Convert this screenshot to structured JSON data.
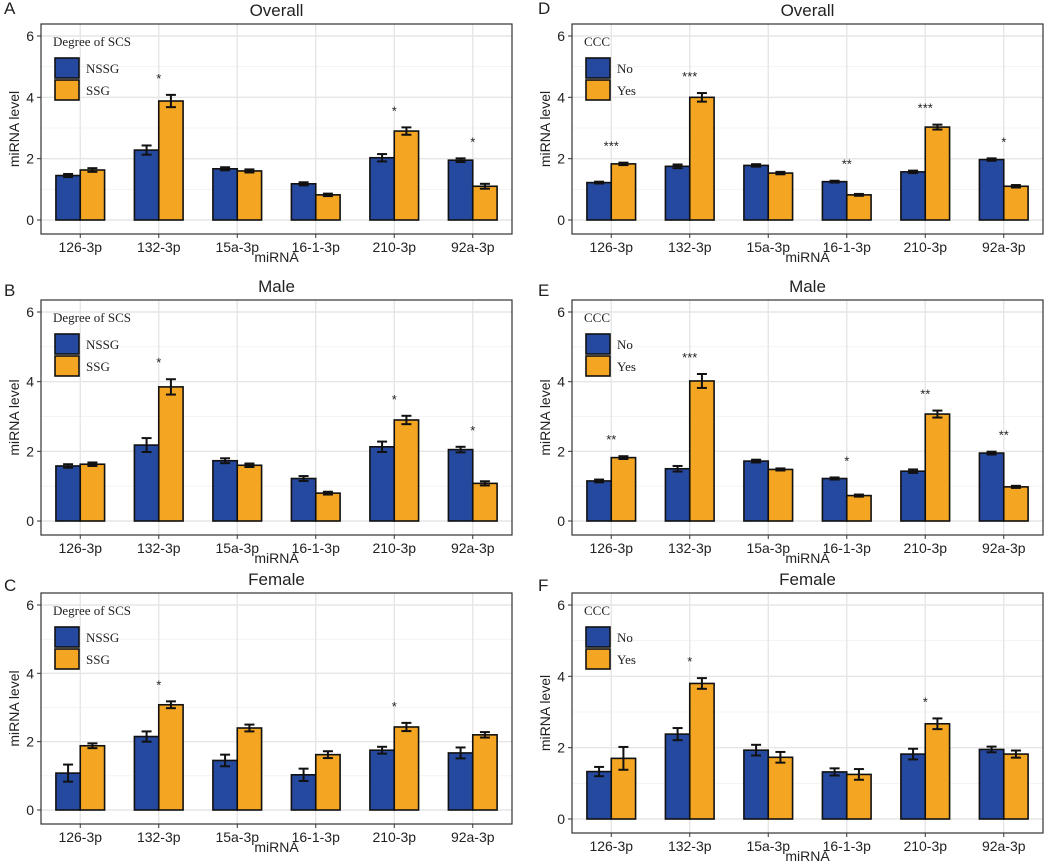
{
  "figure": {
    "panel_letters": [
      "A",
      "B",
      "C",
      "D",
      "E",
      "F"
    ]
  },
  "chart_data": [
    {
      "panel": "A",
      "type": "bar",
      "title": "Overall",
      "xlabel": "miRNA",
      "ylabel": "miRNA level",
      "ylim": [
        0,
        6
      ],
      "yticks": [
        0,
        2,
        4,
        6
      ],
      "grid": true,
      "legend_title": "Degree of SCS",
      "legend_position": "top-left",
      "categories": [
        "126-3p",
        "132-3p",
        "15a-3p",
        "16-1-3p",
        "210-3p",
        "92a-3p"
      ],
      "series": [
        {
          "name": "NSSG",
          "color": "#2649a0",
          "values": [
            1.45,
            2.28,
            1.67,
            1.18,
            2.03,
            1.95
          ],
          "errors": [
            0.05,
            0.15,
            0.05,
            0.05,
            0.12,
            0.06
          ]
        },
        {
          "name": "SSG",
          "color": "#f4a521",
          "values": [
            1.63,
            3.88,
            1.6,
            0.82,
            2.9,
            1.1
          ],
          "errors": [
            0.06,
            0.2,
            0.05,
            0.04,
            0.12,
            0.08
          ]
        }
      ],
      "annotations": [
        "",
        "*",
        "",
        "",
        "*",
        "*"
      ]
    },
    {
      "panel": "B",
      "type": "bar",
      "title": "Male",
      "xlabel": "miRNA",
      "ylabel": "miRNA level",
      "ylim": [
        0,
        6
      ],
      "yticks": [
        0,
        2,
        4,
        6
      ],
      "grid": true,
      "legend_title": "Degree of SCS",
      "legend_position": "top-left",
      "categories": [
        "126-3p",
        "132-3p",
        "15a-3p",
        "16-1-3p",
        "210-3p",
        "92a-3p"
      ],
      "series": [
        {
          "name": "NSSG",
          "color": "#2649a0",
          "values": [
            1.58,
            2.18,
            1.73,
            1.22,
            2.13,
            2.05
          ],
          "errors": [
            0.05,
            0.2,
            0.07,
            0.07,
            0.15,
            0.08
          ]
        },
        {
          "name": "SSG",
          "color": "#f4a521",
          "values": [
            1.63,
            3.85,
            1.6,
            0.8,
            2.9,
            1.08
          ],
          "errors": [
            0.05,
            0.22,
            0.05,
            0.04,
            0.12,
            0.06
          ]
        }
      ],
      "annotations": [
        "",
        "*",
        "",
        "",
        "*",
        "*"
      ]
    },
    {
      "panel": "C",
      "type": "bar",
      "title": "Female",
      "xlabel": "miRNA",
      "ylabel": "miRNA level",
      "ylim": [
        0,
        6
      ],
      "yticks": [
        0,
        2,
        4,
        6
      ],
      "grid": true,
      "legend_title": "Degree of SCS",
      "legend_position": "top-left",
      "categories": [
        "126-3p",
        "132-3p",
        "15a-3p",
        "16-1-3p",
        "210-3p",
        "92a-3p"
      ],
      "series": [
        {
          "name": "NSSG",
          "color": "#2649a0",
          "values": [
            1.08,
            2.15,
            1.45,
            1.03,
            1.75,
            1.67
          ],
          "errors": [
            0.25,
            0.15,
            0.17,
            0.18,
            0.1,
            0.16
          ]
        },
        {
          "name": "SSG",
          "color": "#f4a521",
          "values": [
            1.88,
            3.08,
            2.4,
            1.62,
            2.43,
            2.2
          ],
          "errors": [
            0.07,
            0.1,
            0.1,
            0.1,
            0.12,
            0.08
          ]
        }
      ],
      "annotations": [
        "",
        "*",
        "",
        "",
        "*",
        ""
      ]
    },
    {
      "panel": "D",
      "type": "bar",
      "title": "Overall",
      "xlabel": "miRNA",
      "ylabel": "miRNA level",
      "ylim": [
        0,
        6
      ],
      "yticks": [
        0,
        2,
        4,
        6
      ],
      "grid": true,
      "legend_title": "CCC",
      "legend_position": "top-left",
      "categories": [
        "126-3p",
        "132-3p",
        "15a-3p",
        "16-1-3p",
        "210-3p",
        "92a-3p"
      ],
      "series": [
        {
          "name": "No",
          "color": "#2649a0",
          "values": [
            1.22,
            1.75,
            1.78,
            1.25,
            1.57,
            1.97
          ],
          "errors": [
            0.03,
            0.06,
            0.04,
            0.03,
            0.04,
            0.04
          ]
        },
        {
          "name": "Yes",
          "color": "#f4a521",
          "values": [
            1.83,
            4.0,
            1.53,
            0.82,
            3.03,
            1.1
          ],
          "errors": [
            0.04,
            0.14,
            0.04,
            0.03,
            0.08,
            0.04
          ]
        }
      ],
      "annotations": [
        "***",
        "***",
        "",
        "**",
        "***",
        "*"
      ]
    },
    {
      "panel": "E",
      "type": "bar",
      "title": "Male",
      "xlabel": "miRNA",
      "ylabel": "miRNA level",
      "ylim": [
        0,
        6
      ],
      "yticks": [
        0,
        2,
        4,
        6
      ],
      "grid": true,
      "legend_title": "CCC",
      "legend_position": "top-left",
      "categories": [
        "126-3p",
        "132-3p",
        "15a-3p",
        "16-1-3p",
        "210-3p",
        "92a-3p"
      ],
      "series": [
        {
          "name": "No",
          "color": "#2649a0",
          "values": [
            1.15,
            1.5,
            1.72,
            1.22,
            1.43,
            1.95
          ],
          "errors": [
            0.04,
            0.08,
            0.04,
            0.03,
            0.05,
            0.04
          ]
        },
        {
          "name": "Yes",
          "color": "#f4a521",
          "values": [
            1.82,
            4.02,
            1.48,
            0.73,
            3.07,
            0.98
          ],
          "errors": [
            0.04,
            0.2,
            0.03,
            0.03,
            0.1,
            0.03
          ]
        }
      ],
      "annotations": [
        "**",
        "***",
        "",
        "*",
        "**",
        "**"
      ]
    },
    {
      "panel": "F",
      "type": "bar",
      "title": "Female",
      "xlabel": "miRNA",
      "ylabel": "miRNA level",
      "ylim": [
        0,
        6
      ],
      "yticks": [
        0,
        2,
        4,
        6
      ],
      "grid": true,
      "legend_title": "CCC",
      "legend_position": "top-left",
      "categories": [
        "126-3p",
        "132-3p",
        "15a-3p",
        "16-1-3p",
        "210-3p",
        "92a-3p"
      ],
      "series": [
        {
          "name": "No",
          "color": "#2649a0",
          "values": [
            1.33,
            2.38,
            1.93,
            1.32,
            1.82,
            1.95
          ],
          "errors": [
            0.13,
            0.17,
            0.15,
            0.1,
            0.15,
            0.08
          ]
        },
        {
          "name": "Yes",
          "color": "#f4a521",
          "values": [
            1.7,
            3.8,
            1.73,
            1.25,
            2.67,
            1.82
          ],
          "errors": [
            0.32,
            0.15,
            0.15,
            0.15,
            0.15,
            0.1
          ]
        }
      ],
      "annotations": [
        "",
        "*",
        "",
        "",
        "*",
        ""
      ]
    }
  ]
}
